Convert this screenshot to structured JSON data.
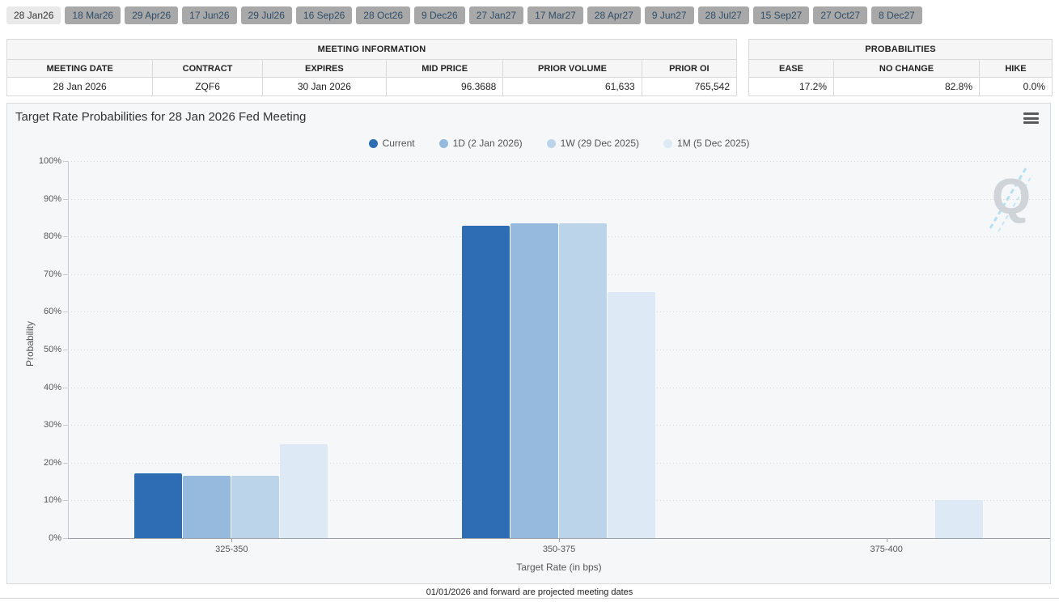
{
  "tabs": {
    "items": [
      {
        "label": "28 Jan26",
        "active": true
      },
      {
        "label": "18 Mar26",
        "active": false
      },
      {
        "label": "29 Apr26",
        "active": false
      },
      {
        "label": "17 Jun26",
        "active": false
      },
      {
        "label": "29 Jul26",
        "active": false
      },
      {
        "label": "16 Sep26",
        "active": false
      },
      {
        "label": "28 Oct26",
        "active": false
      },
      {
        "label": "9 Dec26",
        "active": false
      },
      {
        "label": "27 Jan27",
        "active": false
      },
      {
        "label": "17 Mar27",
        "active": false
      },
      {
        "label": "28 Apr27",
        "active": false
      },
      {
        "label": "9 Jun27",
        "active": false
      },
      {
        "label": "28 Jul27",
        "active": false
      },
      {
        "label": "15 Sep27",
        "active": false
      },
      {
        "label": "27 Oct27",
        "active": false
      },
      {
        "label": "8 Dec27",
        "active": false
      }
    ]
  },
  "meeting_info": {
    "title": "MEETING INFORMATION",
    "columns": [
      "MEETING DATE",
      "CONTRACT",
      "EXPIRES",
      "MID PRICE",
      "PRIOR VOLUME",
      "PRIOR OI"
    ],
    "row": [
      "28 Jan 2026",
      "ZQF6",
      "30 Jan 2026",
      "96.3688",
      "61,633",
      "765,542"
    ]
  },
  "probabilities": {
    "title": "PROBABILITIES",
    "columns": [
      "EASE",
      "NO CHANGE",
      "HIKE"
    ],
    "row": [
      "17.2%",
      "82.8%",
      "0.0%"
    ]
  },
  "chart": {
    "title": "Target Rate Probabilities for 28 Jan 2026 Fed Meeting",
    "xlabel": "Target Rate (in bps)",
    "ylabel": "Probability",
    "watermark_letter": "Q",
    "footer": "01/01/2026 and forward are projected meeting dates"
  },
  "chart_data": {
    "type": "bar",
    "categories": [
      "325-350",
      "350-375",
      "375-400"
    ],
    "series": [
      {
        "name": "Current",
        "color": "#2e6db3",
        "values": [
          17.2,
          82.8,
          0
        ]
      },
      {
        "name": "1D (2 Jan 2026)",
        "color": "#96b9de",
        "values": [
          16.6,
          83.5,
          0
        ]
      },
      {
        "name": "1W (29 Dec 2025)",
        "color": "#bcd4ea",
        "values": [
          16.6,
          83.5,
          0
        ]
      },
      {
        "name": "1M (5 Dec 2025)",
        "color": "#dde9f5",
        "values": [
          24.8,
          65.3,
          10.0
        ]
      }
    ],
    "title": "Target Rate Probabilities for 28 Jan 2026 Fed Meeting",
    "xlabel": "Target Rate (in bps)",
    "ylabel": "Probability",
    "ylim": [
      0,
      100
    ],
    "ytick_step": 10,
    "ytick_format": "percent",
    "grid": "dotted-horizontal",
    "legend_position": "top-center",
    "plot_background": "#f6f7f8"
  }
}
